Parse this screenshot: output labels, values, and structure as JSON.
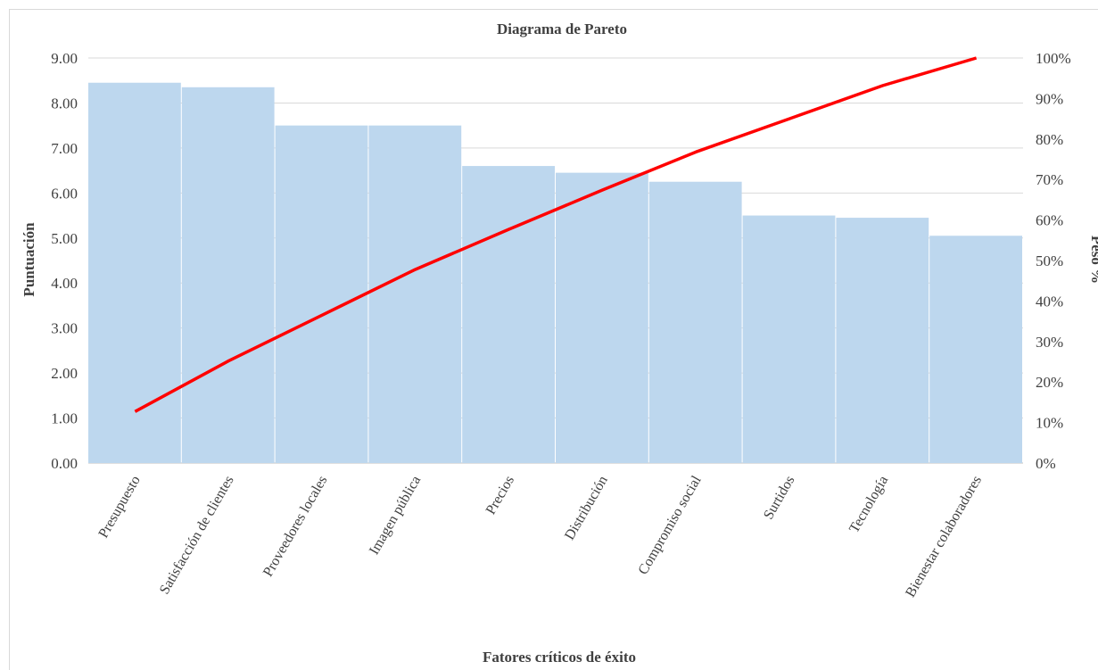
{
  "chart_data": {
    "type": "bar",
    "title": "Diagrama de Pareto",
    "xlabel": "Fatores críticos de éxito",
    "ylabel": "Puntuación",
    "y2label": "Peso %",
    "categories": [
      "Presupuesto",
      "Satisfacción de clientes",
      "Proveedores locales",
      "Imagen pública",
      "Precios",
      "Distribución",
      "Compromiso social",
      "Surtidos",
      "Tecnología",
      "Bienestar colaboradores"
    ],
    "series": [
      {
        "type": "bar",
        "axis": "left",
        "color": "#bdd7ee",
        "values": [
          8.45,
          8.35,
          7.5,
          7.5,
          6.6,
          6.45,
          6.25,
          5.5,
          5.45,
          5.05
        ]
      },
      {
        "type": "line",
        "axis": "right",
        "color": "#ff0000",
        "values": [
          12.7,
          25.2,
          36.5,
          47.8,
          57.7,
          67.4,
          76.8,
          85.0,
          93.2,
          100
        ]
      }
    ],
    "ylim": [
      0,
      9
    ],
    "y2lim": [
      0,
      100
    ],
    "yticks": [
      "0.00",
      "1.00",
      "2.00",
      "3.00",
      "4.00",
      "5.00",
      "6.00",
      "7.00",
      "8.00",
      "9.00"
    ],
    "y2ticks": [
      "0%",
      "10%",
      "20%",
      "30%",
      "40%",
      "50%",
      "60%",
      "70%",
      "80%",
      "90%",
      "100%"
    ],
    "grid": true
  }
}
